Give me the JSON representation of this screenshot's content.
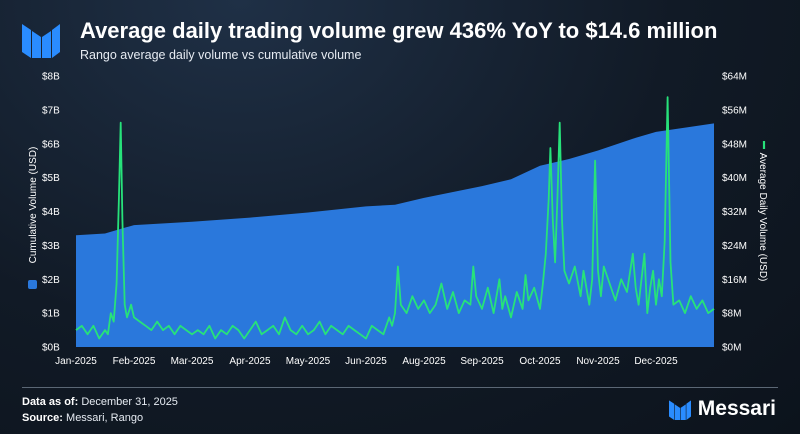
{
  "header": {
    "title": "Average daily trading volume grew 436% YoY to $14.6 million",
    "subtitle": "Rango average daily volume vs cumulative volume"
  },
  "footer": {
    "data_as_of_label": "Data as of:",
    "data_as_of_value": "December 31, 2025",
    "source_label": "Source:",
    "source_value": "Messari, Rango",
    "brand_name": "Messari"
  },
  "colors": {
    "area_fill": "#2a78dc",
    "line": "#27e27a",
    "axis_text": "#ffffff"
  },
  "chart_data": {
    "type": "area+line",
    "title": "Average daily trading volume grew 436% YoY to $14.6 million",
    "y_left_label": "Cumulative Volume (USD)",
    "y_right_label": "Average Daily Volume (USD)",
    "y_left_ticks": [
      "$0B",
      "$1B",
      "$2B",
      "$3B",
      "$4B",
      "$5B",
      "$6B",
      "$7B",
      "$8B"
    ],
    "y_right_ticks": [
      "$0M",
      "$8M",
      "$16M",
      "$24M",
      "$32M",
      "$40M",
      "$48M",
      "$56M",
      "$64M"
    ],
    "x_ticks": [
      "Jan-2025",
      "Feb-2025",
      "Mar-2025",
      "Apr-2025",
      "May-2025",
      "Jun-2025",
      "Aug-2025",
      "Sep-2025",
      "Oct-2025",
      "Nov-2025",
      "Dec-2025"
    ],
    "y_left_range": [
      0,
      8
    ],
    "y_right_range": [
      0,
      64
    ],
    "x_range_months": [
      0,
      11
    ],
    "series": [
      {
        "name": "Cumulative Volume (USD)",
        "axis": "left",
        "unit": "B",
        "type": "area",
        "points": [
          [
            0,
            3.3
          ],
          [
            0.5,
            3.35
          ],
          [
            0.8,
            3.5
          ],
          [
            1,
            3.6
          ],
          [
            2,
            3.7
          ],
          [
            3,
            3.82
          ],
          [
            4,
            3.97
          ],
          [
            5,
            4.15
          ],
          [
            5.5,
            4.2
          ],
          [
            6,
            4.4
          ],
          [
            7,
            4.75
          ],
          [
            7.5,
            4.95
          ],
          [
            8,
            5.35
          ],
          [
            8.5,
            5.55
          ],
          [
            9,
            5.8
          ],
          [
            9.6,
            6.15
          ],
          [
            10,
            6.35
          ],
          [
            11,
            6.6
          ]
        ]
      },
      {
        "name": "Average Daily Volume (USD)",
        "axis": "right",
        "unit": "M",
        "type": "line",
        "points": [
          [
            0,
            4
          ],
          [
            0.1,
            5
          ],
          [
            0.2,
            3
          ],
          [
            0.3,
            5
          ],
          [
            0.4,
            2
          ],
          [
            0.5,
            4
          ],
          [
            0.55,
            3
          ],
          [
            0.6,
            8
          ],
          [
            0.65,
            6
          ],
          [
            0.7,
            15
          ],
          [
            0.74,
            35
          ],
          [
            0.77,
            53
          ],
          [
            0.8,
            30
          ],
          [
            0.84,
            10
          ],
          [
            0.88,
            7
          ],
          [
            0.95,
            10
          ],
          [
            1.0,
            7
          ],
          [
            1.1,
            6
          ],
          [
            1.2,
            5
          ],
          [
            1.3,
            4
          ],
          [
            1.4,
            6
          ],
          [
            1.5,
            4
          ],
          [
            1.6,
            5
          ],
          [
            1.7,
            3
          ],
          [
            1.8,
            5
          ],
          [
            1.9,
            4
          ],
          [
            2.0,
            3
          ],
          [
            2.1,
            4
          ],
          [
            2.2,
            3
          ],
          [
            2.3,
            5
          ],
          [
            2.4,
            2
          ],
          [
            2.5,
            4
          ],
          [
            2.6,
            3
          ],
          [
            2.7,
            5
          ],
          [
            2.8,
            4
          ],
          [
            2.9,
            2
          ],
          [
            3.0,
            4
          ],
          [
            3.1,
            6
          ],
          [
            3.2,
            3
          ],
          [
            3.3,
            4
          ],
          [
            3.4,
            5
          ],
          [
            3.5,
            3
          ],
          [
            3.6,
            7
          ],
          [
            3.7,
            4
          ],
          [
            3.8,
            3
          ],
          [
            3.9,
            5
          ],
          [
            4.0,
            3
          ],
          [
            4.1,
            4
          ],
          [
            4.2,
            6
          ],
          [
            4.3,
            3
          ],
          [
            4.4,
            5
          ],
          [
            4.5,
            4
          ],
          [
            4.6,
            3
          ],
          [
            4.7,
            5
          ],
          [
            4.8,
            4
          ],
          [
            4.9,
            3
          ],
          [
            5.0,
            2
          ],
          [
            5.1,
            5
          ],
          [
            5.2,
            4
          ],
          [
            5.3,
            3
          ],
          [
            5.4,
            7
          ],
          [
            5.45,
            5
          ],
          [
            5.5,
            8
          ],
          [
            5.55,
            19
          ],
          [
            5.6,
            10
          ],
          [
            5.7,
            8
          ],
          [
            5.8,
            12
          ],
          [
            5.9,
            9
          ],
          [
            6.0,
            11
          ],
          [
            6.1,
            8
          ],
          [
            6.2,
            10
          ],
          [
            6.3,
            15
          ],
          [
            6.4,
            9
          ],
          [
            6.5,
            13
          ],
          [
            6.6,
            8
          ],
          [
            6.7,
            11
          ],
          [
            6.8,
            10
          ],
          [
            6.85,
            19
          ],
          [
            6.9,
            12
          ],
          [
            7.0,
            9
          ],
          [
            7.1,
            14
          ],
          [
            7.2,
            8
          ],
          [
            7.3,
            16
          ],
          [
            7.35,
            9
          ],
          [
            7.4,
            12
          ],
          [
            7.5,
            7
          ],
          [
            7.6,
            13
          ],
          [
            7.7,
            9
          ],
          [
            7.75,
            17
          ],
          [
            7.8,
            11
          ],
          [
            7.9,
            14
          ],
          [
            8.0,
            9
          ],
          [
            8.05,
            15
          ],
          [
            8.1,
            22
          ],
          [
            8.15,
            35
          ],
          [
            8.18,
            47
          ],
          [
            8.22,
            30
          ],
          [
            8.26,
            20
          ],
          [
            8.3,
            35
          ],
          [
            8.34,
            53
          ],
          [
            8.38,
            30
          ],
          [
            8.42,
            18
          ],
          [
            8.5,
            15
          ],
          [
            8.6,
            19
          ],
          [
            8.7,
            12
          ],
          [
            8.75,
            18
          ],
          [
            8.8,
            14
          ],
          [
            8.85,
            10
          ],
          [
            8.9,
            16
          ],
          [
            8.95,
            44
          ],
          [
            9.0,
            18
          ],
          [
            9.05,
            12
          ],
          [
            9.1,
            19
          ],
          [
            9.2,
            15
          ],
          [
            9.3,
            11
          ],
          [
            9.4,
            16
          ],
          [
            9.5,
            13
          ],
          [
            9.6,
            22
          ],
          [
            9.65,
            14
          ],
          [
            9.7,
            10
          ],
          [
            9.75,
            16
          ],
          [
            9.8,
            22
          ],
          [
            9.85,
            8
          ],
          [
            9.9,
            14
          ],
          [
            9.95,
            18
          ],
          [
            10.0,
            10
          ],
          [
            10.05,
            16
          ],
          [
            10.1,
            12
          ],
          [
            10.15,
            25
          ],
          [
            10.2,
            59
          ],
          [
            10.25,
            20
          ],
          [
            10.3,
            10
          ],
          [
            10.4,
            11
          ],
          [
            10.5,
            8
          ],
          [
            10.6,
            12
          ],
          [
            10.7,
            9
          ],
          [
            10.8,
            11
          ],
          [
            10.9,
            8
          ],
          [
            11.0,
            9
          ]
        ]
      }
    ],
    "legend": "axis-labels"
  }
}
